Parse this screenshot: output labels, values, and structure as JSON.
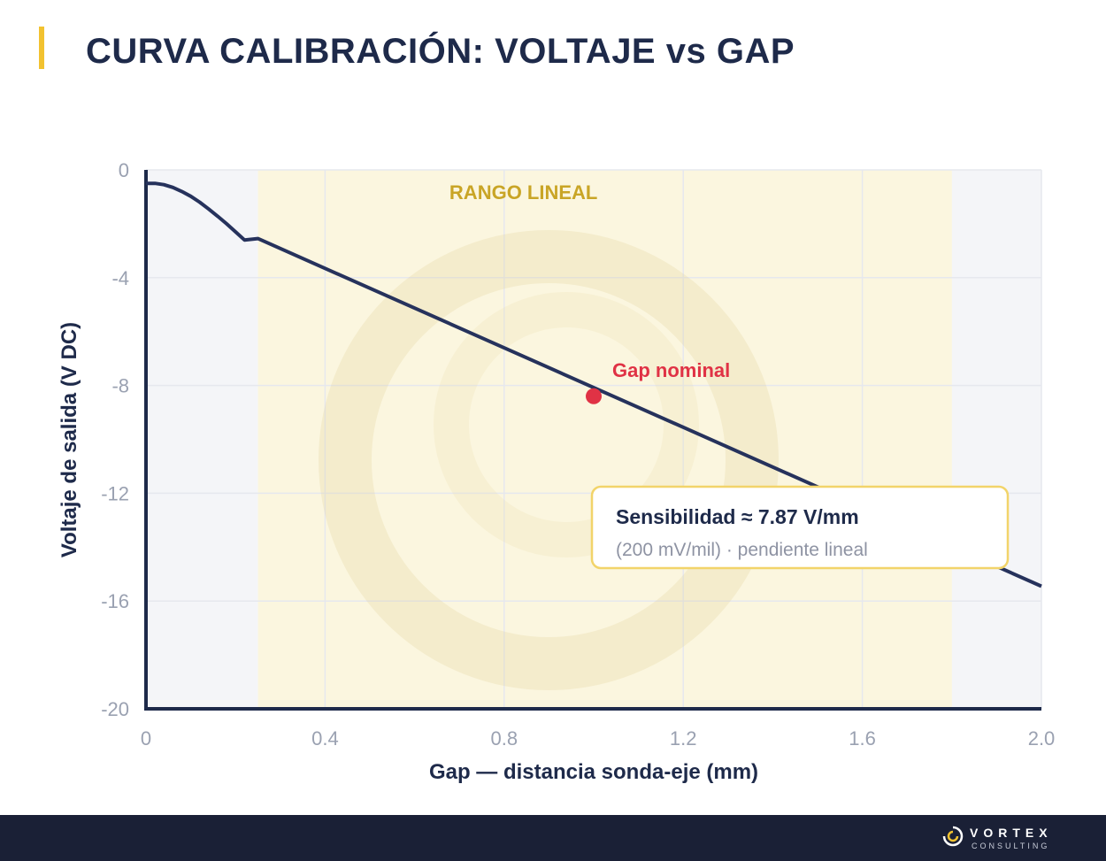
{
  "title": "CURVA CALIBRACIÓN: VOLTAJE vs GAP",
  "chart_data": {
    "type": "line",
    "xlabel": "Gap — distancia sonda-eje (mm)",
    "ylabel": "Voltaje de salida (V DC)",
    "xlim": [
      0,
      2.0
    ],
    "ylim": [
      -20,
      0
    ],
    "x_ticks": [
      "0",
      "0.4",
      "0.8",
      "1.2",
      "1.6",
      "2.0"
    ],
    "y_ticks": [
      "0",
      "-4",
      "-8",
      "-12",
      "-16",
      "-20"
    ],
    "grid": true,
    "series": [
      {
        "x": [
          0,
          0.02,
          0.04,
          0.06,
          0.08,
          0.1,
          0.12,
          0.14,
          0.16,
          0.18,
          0.2,
          0.22,
          0.25,
          2.0
        ],
        "y": [
          -0.5,
          -0.5,
          -0.55,
          -0.65,
          -0.8,
          -0.98,
          -1.2,
          -1.45,
          -1.72,
          -2.0,
          -2.3,
          -2.6,
          -2.55,
          -15.45
        ]
      }
    ],
    "linear_range": {
      "x_start": 0.25,
      "x_end": 1.8,
      "label": "RANGO LINEAL"
    },
    "nominal_point": {
      "x": 1.0,
      "y": -8.4,
      "label": "Gap nominal"
    },
    "annotation_box": {
      "title": "Sensibilidad ≈ 7.87 V/mm",
      "subtitle": "(200 mV/mil) · pendiente lineal"
    }
  },
  "footer": {
    "brand": "VORTEX",
    "tagline": "CONSULTING"
  }
}
